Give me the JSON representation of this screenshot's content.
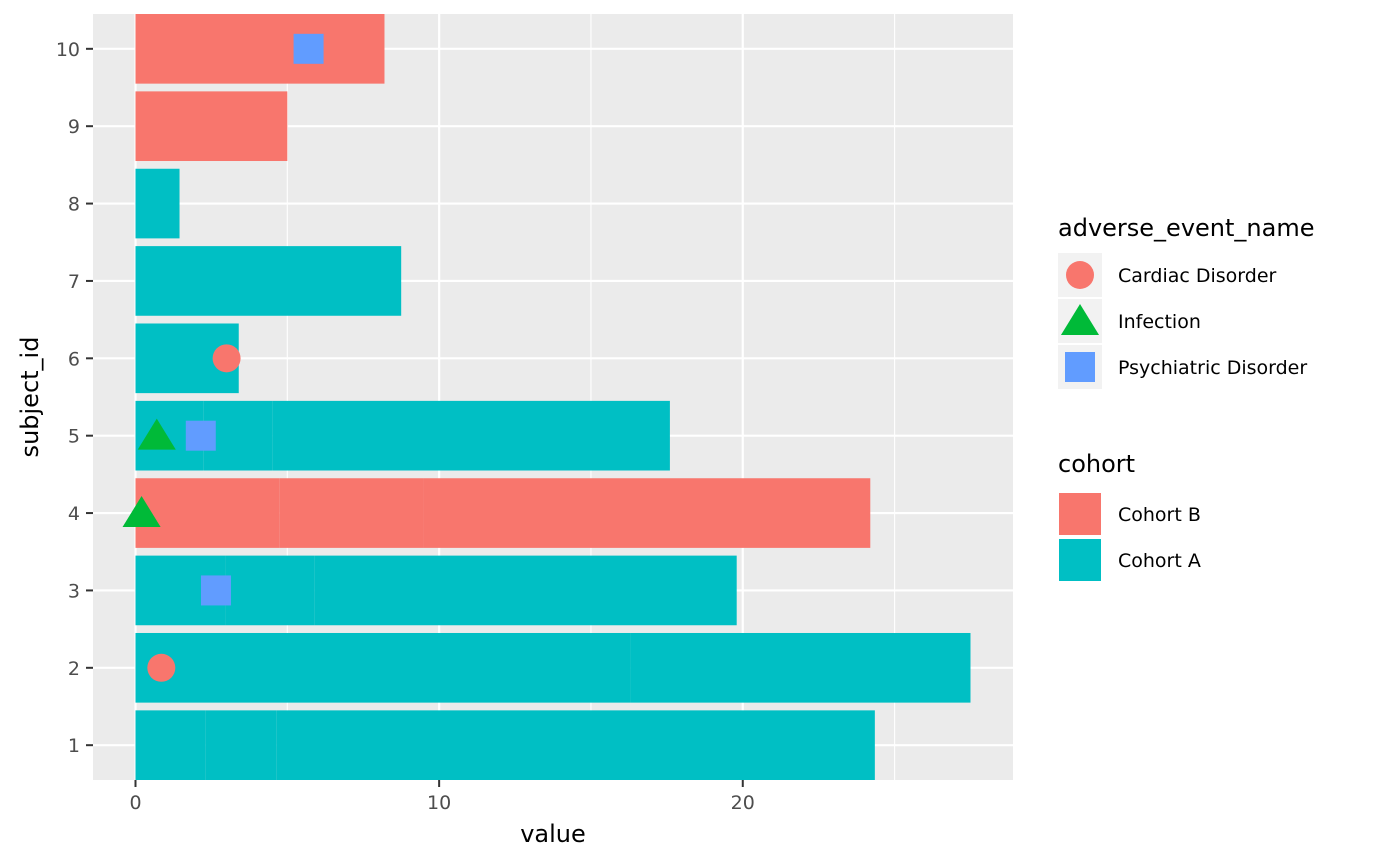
{
  "chart_data": {
    "type": "bar",
    "orientation": "horizontal",
    "stacked": true,
    "xlabel": "value",
    "ylabel": "subject_id",
    "xlim": [
      -1.4,
      28.9
    ],
    "ylim": [
      0.55,
      10.45
    ],
    "x_ticks": [
      0,
      10,
      20
    ],
    "x_tick_labels": [
      "0",
      "10",
      "20"
    ],
    "categories": [
      "1",
      "2",
      "3",
      "4",
      "5",
      "6",
      "7",
      "8",
      "9",
      "10"
    ],
    "grid": true,
    "legend_position": "right",
    "colors": {
      "panel_bg": "#ebebeb",
      "grid": "#ffffff",
      "Cohort B": "#f8766d",
      "Cohort A": "#00bfc4",
      "Cardiac Disorder": "#f8766d",
      "Infection": "#00ba38",
      "Psychiatric Disorder": "#619cff"
    },
    "bars": [
      {
        "subject": 1,
        "cohort": "Cohort A",
        "segments": [
          2.3,
          2.35,
          19.7
        ]
      },
      {
        "subject": 2,
        "cohort": "Cohort A",
        "segments": [
          16.3,
          11.2
        ]
      },
      {
        "subject": 3,
        "cohort": "Cohort A",
        "segments": [
          2.95,
          2.95,
          13.9
        ]
      },
      {
        "subject": 4,
        "cohort": "Cohort B",
        "segments": [
          4.75,
          4.75,
          14.7
        ]
      },
      {
        "subject": 5,
        "cohort": "Cohort A",
        "segments": [
          2.25,
          2.25,
          13.1
        ]
      },
      {
        "subject": 6,
        "cohort": "Cohort A",
        "segments": [
          3.4
        ]
      },
      {
        "subject": 7,
        "cohort": "Cohort A",
        "segments": [
          8.75
        ]
      },
      {
        "subject": 8,
        "cohort": "Cohort A",
        "segments": [
          1.45
        ]
      },
      {
        "subject": 9,
        "cohort": "Cohort B",
        "segments": [
          5.0
        ]
      },
      {
        "subject": 10,
        "cohort": "Cohort B",
        "segments": [
          8.2
        ]
      }
    ],
    "events": [
      {
        "subject": 10,
        "x": 5.7,
        "event": "Psychiatric Disorder"
      },
      {
        "subject": 6,
        "x": 3.0,
        "event": "Cardiac Disorder"
      },
      {
        "subject": 5,
        "x": 0.7,
        "event": "Infection"
      },
      {
        "subject": 5,
        "x": 2.15,
        "event": "Psychiatric Disorder"
      },
      {
        "subject": 4,
        "x": 0.2,
        "event": "Infection"
      },
      {
        "subject": 3,
        "x": 2.65,
        "event": "Psychiatric Disorder"
      },
      {
        "subject": 2,
        "x": 0.85,
        "event": "Cardiac Disorder"
      }
    ],
    "legends": [
      {
        "title": "adverse_event_name",
        "items": [
          {
            "label": "Cardiac Disorder",
            "shape": "circle",
            "color": "#f8766d"
          },
          {
            "label": "Infection",
            "shape": "triangle",
            "color": "#00ba38"
          },
          {
            "label": "Psychiatric Disorder",
            "shape": "square",
            "color": "#619cff"
          }
        ]
      },
      {
        "title": "cohort",
        "items": [
          {
            "label": "Cohort B",
            "shape": "fill",
            "color": "#f8766d"
          },
          {
            "label": "Cohort A",
            "shape": "fill",
            "color": "#00bfc4"
          }
        ]
      }
    ]
  }
}
